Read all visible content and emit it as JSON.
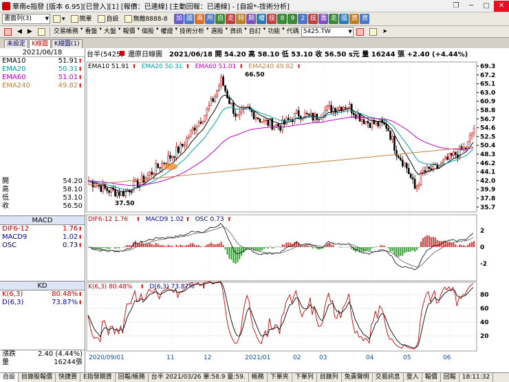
{
  "window": {
    "title": "華南e指發 [版本 6.95][已登入][1] [報價：已連線] [主動回報：已連線] - [自設*-技術分析]"
  },
  "toolbar1": {
    "layout_combo": "畫面列(3)",
    "items": [
      "簡單",
      "自設",
      "無敵8888-8"
    ],
    "quick_keys": [
      "加",
      "國",
      "兩",
      "所",
      "自",
      "走",
      "特",
      "期",
      "權",
      "技",
      "8",
      "9",
      "2",
      "技",
      "籌",
      "走",
      "國",
      "資",
      "資"
    ]
  },
  "toolbar2": {
    "menus": [
      "交易帳務",
      "看盤",
      "大盤",
      "報價",
      "個股",
      "權證",
      "技術分析",
      "選股",
      "資訊",
      "自訂",
      "功能"
    ],
    "code_label": "代碼",
    "code_value": "5425.TW"
  },
  "tabs": [
    "未設定",
    "K線圖",
    "K線圖(1)"
  ],
  "left": {
    "date": "2021/06/18",
    "ema": [
      {
        "label": "EMA10",
        "value": "51.91"
      },
      {
        "label": "EMA20",
        "value": "50.31"
      },
      {
        "label": "EMA60",
        "value": "51.01"
      },
      {
        "label": "EMA240",
        "value": "49.82"
      }
    ],
    "ohlc": [
      {
        "label": "開",
        "value": "54.20"
      },
      {
        "label": "高",
        "value": "58.10"
      },
      {
        "label": "低",
        "value": "53.10"
      },
      {
        "label": "收",
        "value": "56.50"
      }
    ],
    "macd_title": "MACD",
    "macd": [
      {
        "label": "DIF6-12",
        "value": "1.76"
      },
      {
        "label": "MACD9",
        "value": "1.02"
      },
      {
        "label": "OSC",
        "value": "0.73"
      }
    ],
    "kd_title": "KD",
    "kd": [
      {
        "label": "K(6,3)",
        "value": "80.48%"
      },
      {
        "label": "D(6,3)",
        "value": "73.87%"
      }
    ],
    "change_label": "漲跌",
    "change_value": "2.40 (4.44%)",
    "vol_label": "量",
    "vol_value": "16244張"
  },
  "chart": {
    "header": "台半(5425)",
    "mode": "還原日線圖",
    "info": "2021/06/18  開 54.20  高 58.10  低 53.10  收 56.50 s元  量 16244 張  +2.40 (+4.44%)",
    "ema_legend": [
      {
        "text": "EMA10 51.91",
        "color": "#000000"
      },
      {
        "text": "EMA20 50.31",
        "color": "#00a0a0"
      },
      {
        "text": "EMA60 51.01",
        "color": "#c000c0"
      },
      {
        "text": "EMA240 49.82",
        "color": "#c08040"
      }
    ],
    "high_label": "66.50",
    "low_label": "37.50",
    "price_ticks": [
      "69.3",
      "67.2",
      "65.1",
      "63.0",
      "60.9",
      "58.8",
      "56.7",
      "54.6",
      "52.5",
      "50.4",
      "48.3",
      "46.2",
      "44.1",
      "42.0",
      "39.9",
      "37.8",
      "35.7"
    ],
    "macd_legend": [
      {
        "text": "DIF6-12 1.76",
        "color": "#c00000"
      },
      {
        "text": "MACD9 1.02",
        "color": "#0000a0"
      },
      {
        "text": "OSC 0.73",
        "color": "#000060"
      }
    ],
    "macd_ticks": [
      "2",
      "0",
      "-2"
    ],
    "kd_legend": [
      {
        "text": "K(6,3) 80.48%",
        "color": "#c00000"
      },
      {
        "text": "D(6,3) 73.87%",
        "color": "#0000a0"
      }
    ],
    "kd_ticks": [
      "80",
      "60",
      "40",
      "20"
    ],
    "x_labels": [
      "2020/09/01",
      "11",
      "12",
      "2021/01",
      "02",
      "03",
      "04",
      "05",
      "06"
    ]
  },
  "status": [
    "自設",
    "目錄股報價",
    "快捷買",
    "E指發期貨",
    "回報/帳務",
    "台半 2021/03/26 單:58.9 量:59.",
    "帳務",
    "下單夾",
    "下單列",
    "目錄列",
    "免責聲明",
    "交易訊息",
    "登入",
    "報價",
    "回報",
    "18:11:32"
  ]
}
